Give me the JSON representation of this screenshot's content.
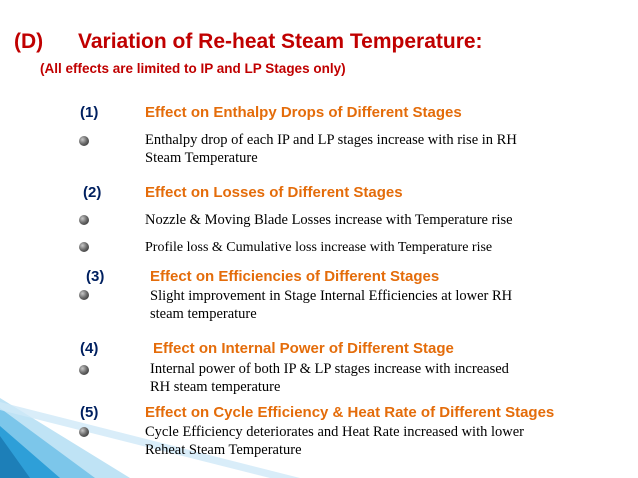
{
  "title": {
    "label": "(D)",
    "text": "Variation of Re-heat Steam Temperature:"
  },
  "subtitle": "(All effects are limited to IP and LP Stages only)",
  "items": [
    {
      "number": "(1)",
      "heading": "Effect on Enthalpy Drops of Different Stages",
      "bullets": [
        [
          "Enthalpy drop of each IP and LP stages increase with rise in RH",
          "Steam Temperature"
        ]
      ]
    },
    {
      "number": "(2)",
      "heading": "Effect on Losses of Different Stages",
      "bullets": [
        [
          "Nozzle & Moving Blade Losses increase with Temperature rise"
        ],
        [
          "Profile loss & Cumulative loss increase with Temperature rise"
        ]
      ]
    },
    {
      "number": "(3)",
      "heading": "Effect on Efficiencies of Different Stages",
      "bullets": [
        [
          "Slight improvement in Stage Internal Efficiencies at lower RH",
          "steam temperature"
        ]
      ]
    },
    {
      "number": "(4)",
      "heading": "Effect on Internal Power of Different Stage",
      "bullets": [
        [
          "Internal power of both IP & LP stages increase with increased",
          "RH steam temperature"
        ]
      ]
    },
    {
      "number": "(5)",
      "heading": "Effect on Cycle Efficiency & Heat Rate of Different Stages",
      "bullets": [
        [
          "Cycle Efficiency deteriorates and Heat Rate increased with lower",
          "Reheat Steam Temperature"
        ]
      ]
    }
  ],
  "colors": {
    "title": "#c00000",
    "number": "#002060",
    "heading": "#e46c0a",
    "decoration": "#1f9bd7"
  }
}
